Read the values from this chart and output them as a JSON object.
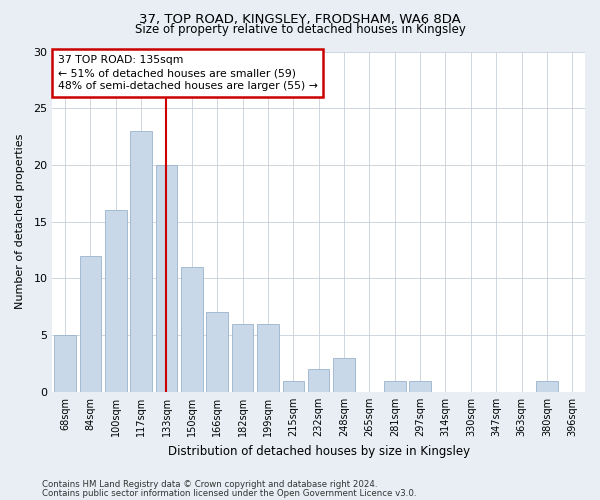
{
  "title1": "37, TOP ROAD, KINGSLEY, FRODSHAM, WA6 8DA",
  "title2": "Size of property relative to detached houses in Kingsley",
  "xlabel": "Distribution of detached houses by size in Kingsley",
  "ylabel": "Number of detached properties",
  "categories": [
    "68sqm",
    "84sqm",
    "100sqm",
    "117sqm",
    "133sqm",
    "150sqm",
    "166sqm",
    "182sqm",
    "199sqm",
    "215sqm",
    "232sqm",
    "248sqm",
    "265sqm",
    "281sqm",
    "297sqm",
    "314sqm",
    "330sqm",
    "347sqm",
    "363sqm",
    "380sqm",
    "396sqm"
  ],
  "values": [
    5,
    12,
    16,
    23,
    20,
    11,
    7,
    6,
    6,
    1,
    2,
    3,
    0,
    1,
    1,
    0,
    0,
    0,
    0,
    1,
    0
  ],
  "bar_color": "#c8d8e8",
  "bar_edge_color": "#9ab4cc",
  "vline_index": 4,
  "annotation_title": "37 TOP ROAD: 135sqm",
  "annotation_line1": "← 51% of detached houses are smaller (59)",
  "annotation_line2": "48% of semi-detached houses are larger (55) →",
  "annotation_box_facecolor": "#ffffff",
  "annotation_box_edgecolor": "#cc0000",
  "vline_color": "#cc0000",
  "ylim": [
    0,
    30
  ],
  "yticks": [
    0,
    5,
    10,
    15,
    20,
    25,
    30
  ],
  "footer1": "Contains HM Land Registry data © Crown copyright and database right 2024.",
  "footer2": "Contains public sector information licensed under the Open Government Licence v3.0.",
  "bg_color": "#e8eef4",
  "plot_bg_color": "#ffffff",
  "grid_color": "#c8d0d8"
}
